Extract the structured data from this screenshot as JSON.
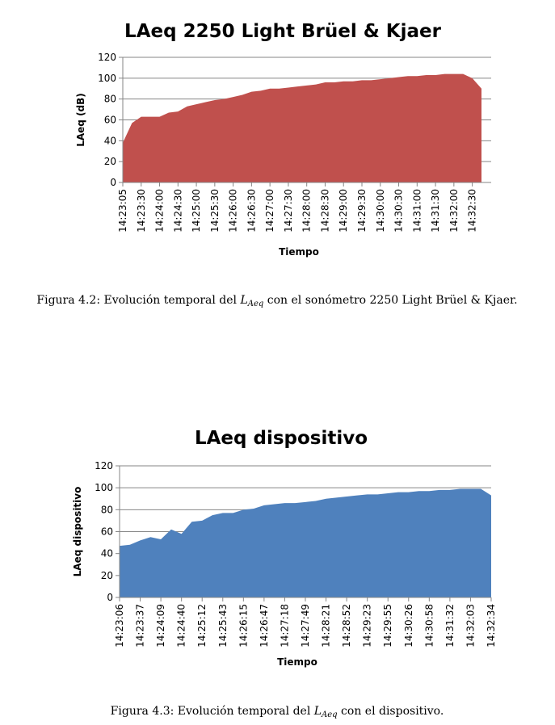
{
  "chart_data": [
    {
      "type": "area",
      "title": "LAeq 2250 Light Brüel & Kjaer",
      "x_label": "Tiempo",
      "y_label": "LAeq (dB)",
      "color": "#c0504d",
      "grid": true,
      "ylim": [
        0,
        120
      ],
      "yticks": [
        0,
        20,
        40,
        60,
        80,
        100,
        120
      ],
      "categories": [
        "14:23:05",
        null,
        "14:23:30",
        null,
        "14:24:00",
        null,
        "14:24:30",
        null,
        "14:25:00",
        null,
        "14:25:30",
        null,
        "14:26:00",
        null,
        "14:26:30",
        null,
        "14:27:00",
        null,
        "14:27:30",
        null,
        "14:28:00",
        null,
        "14:28:30",
        null,
        "14:29:00",
        null,
        "14:29:30",
        null,
        "14:30:00",
        null,
        "14:30:30",
        null,
        "14:31:00",
        null,
        "14:31:30",
        null,
        "14:32:00",
        null,
        "14:32:30",
        null
      ],
      "values": [
        38,
        57,
        63,
        63,
        63,
        67,
        68,
        73,
        75,
        77,
        79,
        80,
        82,
        84,
        87,
        88,
        90,
        90,
        91,
        92,
        93,
        94,
        96,
        96,
        97,
        97,
        98,
        98,
        99,
        100,
        101,
        102,
        102,
        103,
        103,
        104,
        104,
        104,
        100,
        90
      ]
    },
    {
      "type": "area",
      "title": "LAeq dispositivo",
      "x_label": "Tiempo",
      "y_label": "LAeq dispositivo",
      "color": "#4f81bd",
      "grid": true,
      "ylim": [
        0,
        120
      ],
      "yticks": [
        0,
        20,
        40,
        60,
        80,
        100,
        120
      ],
      "categories": [
        "14:23:06",
        null,
        "14:23:37",
        null,
        "14:24:09",
        null,
        "14:24:40",
        null,
        "14:25:12",
        null,
        "14:25:43",
        null,
        "14:26:15",
        null,
        "14:26:47",
        null,
        "14:27:18",
        null,
        "14:27:49",
        null,
        "14:28:21",
        null,
        "14:28:52",
        null,
        "14:29:23",
        null,
        "14:29:55",
        null,
        "14:30:26",
        null,
        "14:30:58",
        null,
        "14:31:32",
        null,
        "14:32:03",
        null,
        "14:32:34"
      ],
      "values": [
        47,
        48,
        52,
        55,
        53,
        62,
        58,
        69,
        70,
        75,
        77,
        77,
        80,
        81,
        84,
        85,
        86,
        86,
        87,
        88,
        90,
        91,
        92,
        93,
        94,
        94,
        95,
        96,
        96,
        97,
        97,
        98,
        98,
        99,
        99,
        99,
        93
      ]
    }
  ],
  "captions": [
    {
      "prefix": "Figura 4.2: Evolución temporal del ",
      "symbol": "L",
      "subscript": "Aeq",
      "suffix": " con el sonómetro 2250 Light Brüel & Kjaer."
    },
    {
      "prefix": "Figura 4.3: Evolución temporal del ",
      "symbol": "L",
      "subscript": "Aeq",
      "suffix": " con el dispositivo."
    }
  ]
}
